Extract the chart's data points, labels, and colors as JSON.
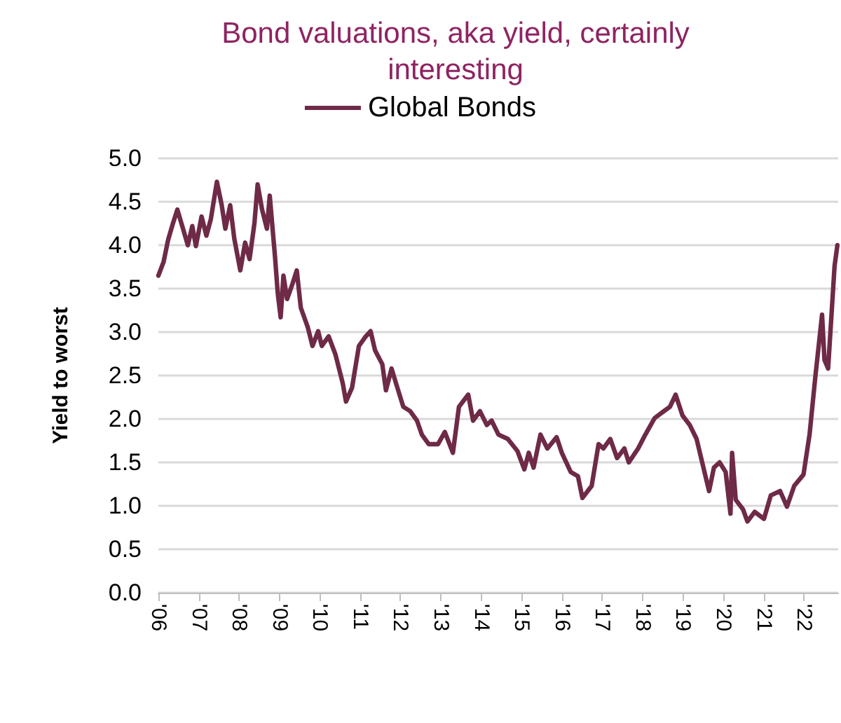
{
  "chart_data": {
    "type": "line",
    "title": "Bond valuations, aka yield, certainly\ninteresting",
    "ylabel": "Yield to worst",
    "legend": "top",
    "grid": "y",
    "marker": "none",
    "line_style": "solid",
    "xlim": [
      2006,
      2022.85
    ],
    "xticks": [
      {
        "value": 2006,
        "label": "'06"
      },
      {
        "value": 2007,
        "label": "'07"
      },
      {
        "value": 2008,
        "label": "'08"
      },
      {
        "value": 2009,
        "label": "'09"
      },
      {
        "value": 2010,
        "label": "'10"
      },
      {
        "value": 2011,
        "label": "'11"
      },
      {
        "value": 2012,
        "label": "'12"
      },
      {
        "value": 2013,
        "label": "'13"
      },
      {
        "value": 2014,
        "label": "'14"
      },
      {
        "value": 2015,
        "label": "'15"
      },
      {
        "value": 2016,
        "label": "'16"
      },
      {
        "value": 2017,
        "label": "'17"
      },
      {
        "value": 2018,
        "label": "'18"
      },
      {
        "value": 2019,
        "label": "'19"
      },
      {
        "value": 2020,
        "label": "'20"
      },
      {
        "value": 2021,
        "label": "'21"
      },
      {
        "value": 2022,
        "label": "'22"
      }
    ],
    "ylim": [
      0,
      5
    ],
    "yticks": [
      {
        "value": 0,
        "label": "0.0"
      },
      {
        "value": 0.5,
        "label": "0.5"
      },
      {
        "value": 1,
        "label": "1.0"
      },
      {
        "value": 1.5,
        "label": "1.5"
      },
      {
        "value": 2,
        "label": "2.0"
      },
      {
        "value": 2.5,
        "label": "2.5"
      },
      {
        "value": 3,
        "label": "3.0"
      },
      {
        "value": 3.5,
        "label": "3.5"
      },
      {
        "value": 4,
        "label": "4.0"
      },
      {
        "value": 4.5,
        "label": "4.5"
      },
      {
        "value": 5,
        "label": "5.0"
      }
    ],
    "series": [
      {
        "name": "Global Bonds",
        "color": "#6e2a47",
        "x": [
          2006.0,
          2006.13,
          2006.24,
          2006.36,
          2006.47,
          2006.61,
          2006.73,
          2006.84,
          2006.93,
          2007.07,
          2007.19,
          2007.3,
          2007.45,
          2007.57,
          2007.66,
          2007.78,
          2007.88,
          2008.03,
          2008.15,
          2008.26,
          2008.38,
          2008.46,
          2008.57,
          2008.69,
          2008.76,
          2008.89,
          2008.96,
          2009.03,
          2009.1,
          2009.19,
          2009.32,
          2009.43,
          2009.53,
          2009.7,
          2009.82,
          2009.96,
          2010.05,
          2010.22,
          2010.39,
          2010.57,
          2010.65,
          2010.8,
          2010.97,
          2011.14,
          2011.26,
          2011.37,
          2011.55,
          2011.64,
          2011.78,
          2011.89,
          2012.07,
          2012.24,
          2012.41,
          2012.53,
          2012.7,
          2012.93,
          2013.1,
          2013.3,
          2013.45,
          2013.68,
          2013.8,
          2013.97,
          2014.14,
          2014.26,
          2014.43,
          2014.66,
          2014.9,
          2015.07,
          2015.18,
          2015.3,
          2015.47,
          2015.64,
          2015.87,
          2016.0,
          2016.22,
          2016.4,
          2016.51,
          2016.74,
          2016.91,
          2017.03,
          2017.2,
          2017.37,
          2017.55,
          2017.66,
          2017.89,
          2018.07,
          2018.3,
          2018.53,
          2018.68,
          2018.82,
          2018.99,
          2019.17,
          2019.34,
          2019.51,
          2019.65,
          2019.77,
          2019.91,
          2020.06,
          2020.18,
          2020.22,
          2020.31,
          2020.49,
          2020.6,
          2020.78,
          2021.01,
          2021.18,
          2021.41,
          2021.58,
          2021.76,
          2021.99,
          2022.14,
          2022.28,
          2022.45,
          2022.51,
          2022.6,
          2022.68,
          2022.76,
          2022.83
        ],
        "values": [
          3.65,
          3.81,
          4.06,
          4.25,
          4.41,
          4.19,
          4.0,
          4.22,
          3.99,
          4.33,
          4.11,
          4.3,
          4.73,
          4.46,
          4.19,
          4.46,
          4.08,
          3.71,
          4.03,
          3.84,
          4.25,
          4.7,
          4.41,
          4.19,
          4.57,
          3.87,
          3.44,
          3.17,
          3.65,
          3.38,
          3.55,
          3.71,
          3.28,
          3.06,
          2.84,
          3.01,
          2.84,
          2.95,
          2.74,
          2.41,
          2.2,
          2.36,
          2.84,
          2.95,
          3.01,
          2.79,
          2.63,
          2.33,
          2.58,
          2.41,
          2.14,
          2.09,
          1.98,
          1.82,
          1.71,
          1.71,
          1.85,
          1.61,
          2.14,
          2.28,
          1.98,
          2.09,
          1.93,
          1.98,
          1.82,
          1.77,
          1.63,
          1.42,
          1.61,
          1.44,
          1.82,
          1.66,
          1.79,
          1.61,
          1.39,
          1.34,
          1.09,
          1.23,
          1.71,
          1.66,
          1.77,
          1.55,
          1.66,
          1.5,
          1.66,
          1.82,
          2.01,
          2.09,
          2.14,
          2.28,
          2.04,
          1.93,
          1.77,
          1.44,
          1.17,
          1.44,
          1.5,
          1.39,
          0.91,
          1.61,
          1.07,
          0.96,
          0.82,
          0.93,
          0.85,
          1.12,
          1.17,
          0.99,
          1.23,
          1.36,
          1.82,
          2.47,
          3.2,
          2.68,
          2.58,
          3.17,
          3.76,
          4.0
        ]
      }
    ]
  }
}
